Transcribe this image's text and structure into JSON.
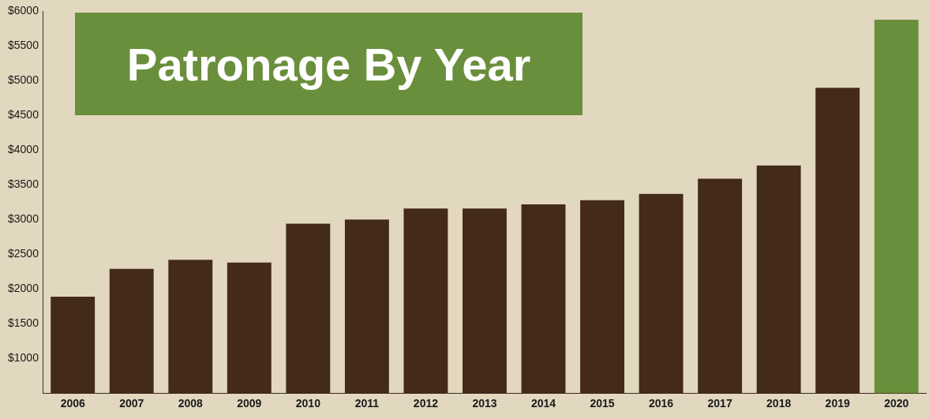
{
  "chart_data": {
    "type": "bar",
    "title": "Patronage By Year",
    "categories": [
      "2006",
      "2007",
      "2008",
      "2009",
      "2010",
      "2011",
      "2012",
      "2013",
      "2014",
      "2015",
      "2016",
      "2017",
      "2018",
      "2019",
      "2020"
    ],
    "values": [
      1890,
      2290,
      2420,
      2380,
      2940,
      3000,
      3160,
      3160,
      3220,
      3280,
      3370,
      3590,
      3780,
      4900,
      5880
    ],
    "colors": [
      "#432a1b",
      "#432a1b",
      "#432a1b",
      "#432a1b",
      "#432a1b",
      "#432a1b",
      "#432a1b",
      "#432a1b",
      "#432a1b",
      "#432a1b",
      "#432a1b",
      "#432a1b",
      "#432a1b",
      "#432a1b",
      "#6a8f3c"
    ],
    "ylim": [
      500,
      6000
    ],
    "yticks": [
      {
        "value": 1000,
        "label": "$1000"
      },
      {
        "value": 1500,
        "label": "$1500"
      },
      {
        "value": 2000,
        "label": "$2000"
      },
      {
        "value": 2500,
        "label": "$2500"
      },
      {
        "value": 3000,
        "label": "$3000"
      },
      {
        "value": 3500,
        "label": "$3500"
      },
      {
        "value": 4000,
        "label": "$4000"
      },
      {
        "value": 4500,
        "label": "$4500"
      },
      {
        "value": 5000,
        "label": "$5000"
      },
      {
        "value": 5500,
        "label": "$5500"
      },
      {
        "value": 6000,
        "label": "$6000"
      }
    ],
    "grid": false
  }
}
